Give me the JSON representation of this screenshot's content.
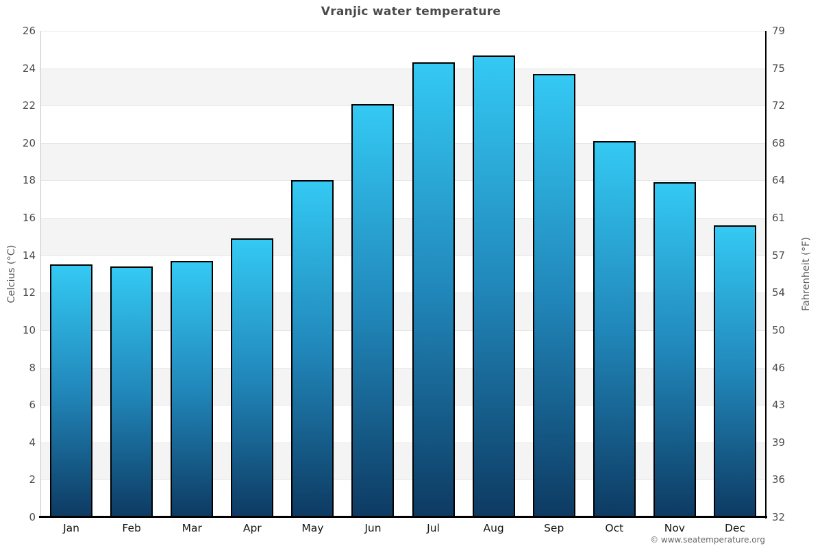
{
  "header": {
    "title": "Vranjic water temperature"
  },
  "axes": {
    "left_title": "Celcius (°C)",
    "right_title": "Fahrenheit (°F)"
  },
  "credit": {
    "label": "© www.seatemperature.org"
  },
  "chart_data": {
    "type": "bar",
    "title": "Vranjic water temperature",
    "categories": [
      "Jan",
      "Feb",
      "Mar",
      "Apr",
      "May",
      "Jun",
      "Jul",
      "Aug",
      "Sep",
      "Oct",
      "Nov",
      "Dec"
    ],
    "values": [
      13.5,
      13.4,
      13.7,
      14.9,
      18.0,
      22.1,
      24.3,
      24.7,
      23.7,
      20.1,
      17.9,
      15.6
    ],
    "series_name": "Water temperature",
    "xlabel": "",
    "ylabel": "Celcius (°C)",
    "ylabel_right": "Fahrenheit (°F)",
    "ylim": [
      0,
      26
    ],
    "ytick_step_celsius": 2,
    "yticks_celsius": [
      26,
      24,
      22,
      20,
      18,
      16,
      14,
      12,
      10,
      8,
      6,
      4,
      2,
      0
    ],
    "yticks_fahrenheit": [
      79,
      75,
      72,
      68,
      64,
      61,
      57,
      54,
      50,
      46,
      43,
      39,
      36,
      32
    ],
    "legend": "none",
    "grid": "horizontal gridlines with alternating white/gray bands",
    "colors": {
      "bar_gradient_top": "#34c9f3",
      "bar_gradient_mid": "#2187ba",
      "bar_gradient_bottom": "#0d3a62",
      "bar_border": "#000000",
      "band_gray": "#f4f4f4",
      "gridline": "#e7e7e7",
      "axis_bottom": "#000000",
      "axis_right": "#000000",
      "axis_left": "#c9c9c9",
      "title_text": "#4a4a4a",
      "tick_text": "#4d4d4d",
      "month_text": "#141414",
      "credit_text": "#666666"
    }
  }
}
